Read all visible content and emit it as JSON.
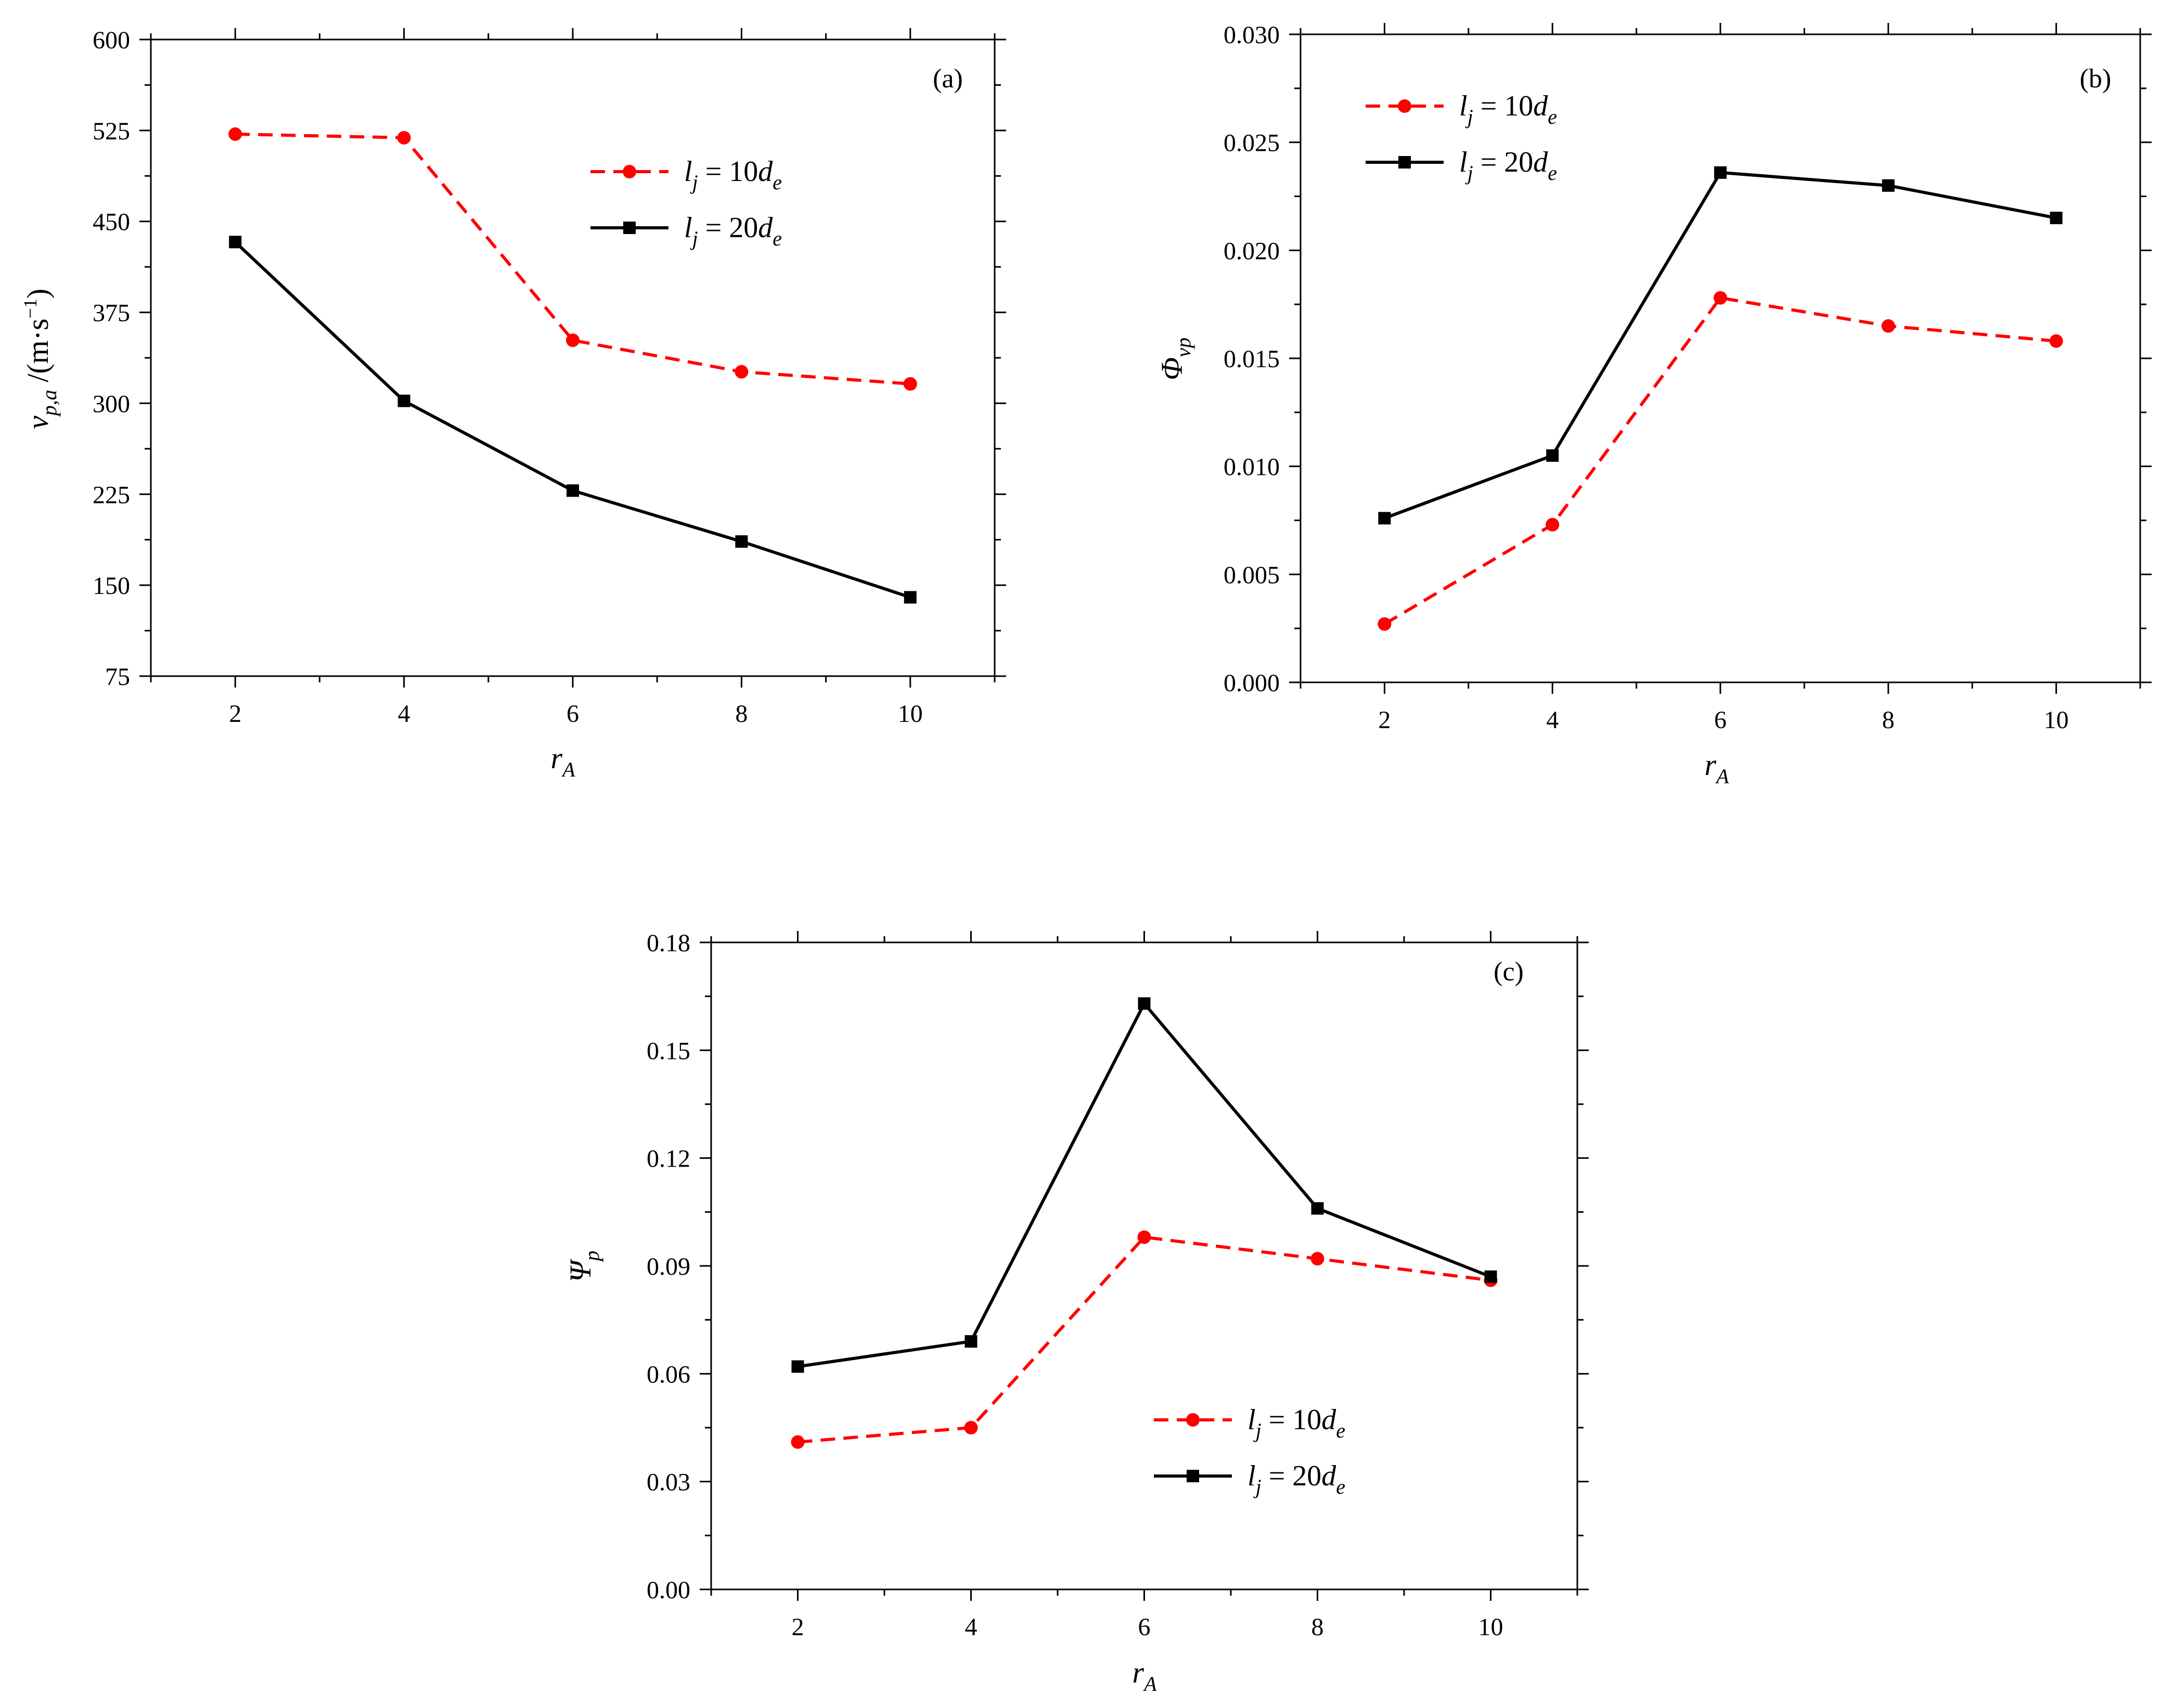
{
  "colors": {
    "series_10de": "#ff0000",
    "series_20de": "#000000",
    "axis": "#000000",
    "background": "#ffffff"
  },
  "legend": {
    "series_10de": {
      "l": "l",
      "l_sub": "j",
      "eq": " = 10",
      "d": "d",
      "d_sub": "e"
    },
    "series_20de": {
      "l": "l",
      "l_sub": "j",
      "eq": " = 20",
      "d": "d",
      "d_sub": "e"
    }
  },
  "chart_data": [
    {
      "id": "a",
      "type": "line",
      "panel_label": "(a)",
      "xlabel": {
        "main": "r",
        "sub": "A"
      },
      "ylabel": {
        "main": "v",
        "sub": "p,a",
        "unit": " /(m·s",
        "sup": "−1",
        "close": ")"
      },
      "x": [
        2,
        4,
        6,
        8,
        10
      ],
      "xticks": [
        2,
        4,
        6,
        8,
        10
      ],
      "xlim": [
        1,
        11
      ],
      "yticks": [
        "75",
        "150",
        "225",
        "300",
        "375",
        "450",
        "525",
        "600"
      ],
      "ylim": [
        75,
        600
      ],
      "legend_position": "upper-center",
      "series": [
        {
          "name": "l_j = 10d_e",
          "style": "dashed",
          "marker": "circle",
          "color": "#ff0000",
          "values": [
            522,
            519,
            352,
            326,
            316
          ]
        },
        {
          "name": "l_j = 20d_e",
          "style": "solid",
          "marker": "square",
          "color": "#000000",
          "values": [
            433,
            302,
            228,
            186,
            140
          ]
        }
      ]
    },
    {
      "id": "b",
      "type": "line",
      "panel_label": "(b)",
      "xlabel": {
        "main": "r",
        "sub": "A"
      },
      "ylabel": {
        "main": "Φ",
        "sub": "vp"
      },
      "x": [
        2,
        4,
        6,
        8,
        10
      ],
      "xticks": [
        2,
        4,
        6,
        8,
        10
      ],
      "xlim": [
        1,
        11
      ],
      "yticks": [
        "0.000",
        "0.005",
        "0.010",
        "0.015",
        "0.020",
        "0.025",
        "0.030"
      ],
      "ylim": [
        0,
        0.03
      ],
      "legend_position": "upper-left",
      "series": [
        {
          "name": "l_j = 10d_e",
          "style": "dashed",
          "marker": "circle",
          "color": "#ff0000",
          "values": [
            0.0027,
            0.0073,
            0.0178,
            0.0165,
            0.0158
          ]
        },
        {
          "name": "l_j = 20d_e",
          "style": "solid",
          "marker": "square",
          "color": "#000000",
          "values": [
            0.0076,
            0.0105,
            0.0236,
            0.023,
            0.0215
          ]
        }
      ]
    },
    {
      "id": "c",
      "type": "line",
      "panel_label": "(c)",
      "xlabel": {
        "main": "r",
        "sub": "A"
      },
      "ylabel": {
        "main": "Ψ",
        "sub": "p"
      },
      "x": [
        2,
        4,
        6,
        8,
        10
      ],
      "xticks": [
        2,
        4,
        6,
        8,
        10
      ],
      "xlim": [
        1,
        11
      ],
      "yticks": [
        "0.00",
        "0.03",
        "0.06",
        "0.09",
        "0.12",
        "0.15",
        "0.18"
      ],
      "ylim": [
        0,
        0.18
      ],
      "legend_position": "lower-center",
      "series": [
        {
          "name": "l_j = 10d_e",
          "style": "dashed",
          "marker": "circle",
          "color": "#ff0000",
          "values": [
            0.041,
            0.045,
            0.098,
            0.092,
            0.086
          ]
        },
        {
          "name": "l_j = 20d_e",
          "style": "solid",
          "marker": "square",
          "color": "#000000",
          "values": [
            0.062,
            0.069,
            0.163,
            0.106,
            0.087
          ]
        }
      ]
    }
  ]
}
